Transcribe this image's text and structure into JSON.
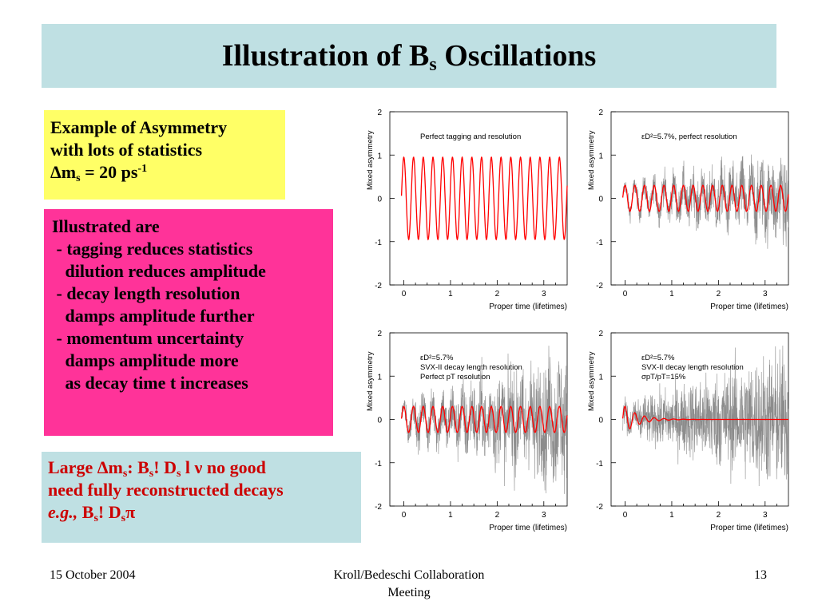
{
  "header": {
    "title_prefix": "Illustration of B",
    "title_sub": "s",
    "title_suffix": " Oscillations"
  },
  "yellow_box": {
    "line1": "Example of Asymmetry",
    "line2": "with lots of statistics",
    "dm": "Δm",
    "dm_sub": "s",
    "dm_eq": " = 20 ps",
    "dm_sup": "-1"
  },
  "pink_box": {
    "lines": [
      "Illustrated are",
      " - tagging reduces statistics",
      "   dilution reduces amplitude",
      " - decay length resolution",
      "   damps amplitude further",
      " - momentum uncertainty",
      "   damps amplitude more",
      "   as decay time t increases"
    ]
  },
  "cyan_box": {
    "l1_a": "Large ",
    "l1_dm": "Δm",
    "l1_dm_sub": "s",
    "l1_b": ": B",
    "l1_bs_sub": "s",
    "l1_arrow": "!",
    "l1_c": " D",
    "l1_ds_sub": "s",
    "l1_d": " l ν no good",
    "line2": "need fully reconstructed decays",
    "l3_eg": "e.g.,",
    "l3_b": " B",
    "l3_bs_sub": "s",
    "l3_arrow": "!",
    "l3_c": " D",
    "l3_ds_sub": "s",
    "l3_pi": "π"
  },
  "footer": {
    "date": "15 October 2004",
    "center_line1": "Kroll/Bedeschi Collaboration",
    "center_line2": "Meeting",
    "page": "13"
  },
  "colors": {
    "title_bg": "#bfe0e3",
    "yellow": "#ffff66",
    "pink": "#ff3399",
    "cyan_box": "#bfe0e3",
    "red_text": "#cc0000",
    "curve": "#ff0000",
    "data": "#8c8c8c"
  },
  "chart_data": [
    {
      "type": "line",
      "xlabel": "Proper time (lifetimes)",
      "ylabel": "Mixed asymmetry",
      "xlim": [
        -0.3,
        3.5
      ],
      "ylim": [
        -2,
        2
      ],
      "xticks": [
        0,
        1,
        2,
        3
      ],
      "yticks": [
        -2,
        -1,
        0,
        1,
        2
      ],
      "annotations": [
        "Perfect tagging and resolution"
      ],
      "amplitude": 0.95,
      "damping": "none",
      "frequency_per_lifetime": 4.8,
      "data_scatter": 0
    },
    {
      "type": "line",
      "xlabel": "Proper time (lifetimes)",
      "ylabel": "Mixed asymmetry",
      "xlim": [
        -0.3,
        3.5
      ],
      "ylim": [
        -2,
        2
      ],
      "xticks": [
        0,
        1,
        2,
        3
      ],
      "yticks": [
        -2,
        -1,
        0,
        1,
        2
      ],
      "annotations": [
        "εD²=5.7%, perfect resolution"
      ],
      "amplitude": 0.3,
      "damping": "none",
      "frequency_per_lifetime": 4.8,
      "data_scatter": 0.35
    },
    {
      "type": "line",
      "xlabel": "Proper time (lifetimes)",
      "ylabel": "Mixed asymmetry",
      "xlim": [
        -0.3,
        3.5
      ],
      "ylim": [
        -2,
        2
      ],
      "xticks": [
        0,
        1,
        2,
        3
      ],
      "yticks": [
        -2,
        -1,
        0,
        1,
        2
      ],
      "annotations": [
        "εD²=5.7%",
        "SVX-II decay length resolution",
        "Perfect pT resolution"
      ],
      "amplitude": 0.3,
      "damping": "none",
      "frequency_per_lifetime": 4.8,
      "data_scatter": 0.55
    },
    {
      "type": "line",
      "xlabel": "Proper time (lifetimes)",
      "ylabel": "Mixed asymmetry",
      "xlim": [
        -0.3,
        3.5
      ],
      "ylim": [
        -2,
        2
      ],
      "xticks": [
        0,
        1,
        2,
        3
      ],
      "yticks": [
        -2,
        -1,
        0,
        1,
        2
      ],
      "annotations": [
        "εD²=5.7%",
        "SVX-II decay length resolution",
        "σpT/pT=15%"
      ],
      "amplitude": 0.3,
      "damping": "strong",
      "frequency_per_lifetime": 4.8,
      "data_scatter": 0.6
    }
  ]
}
